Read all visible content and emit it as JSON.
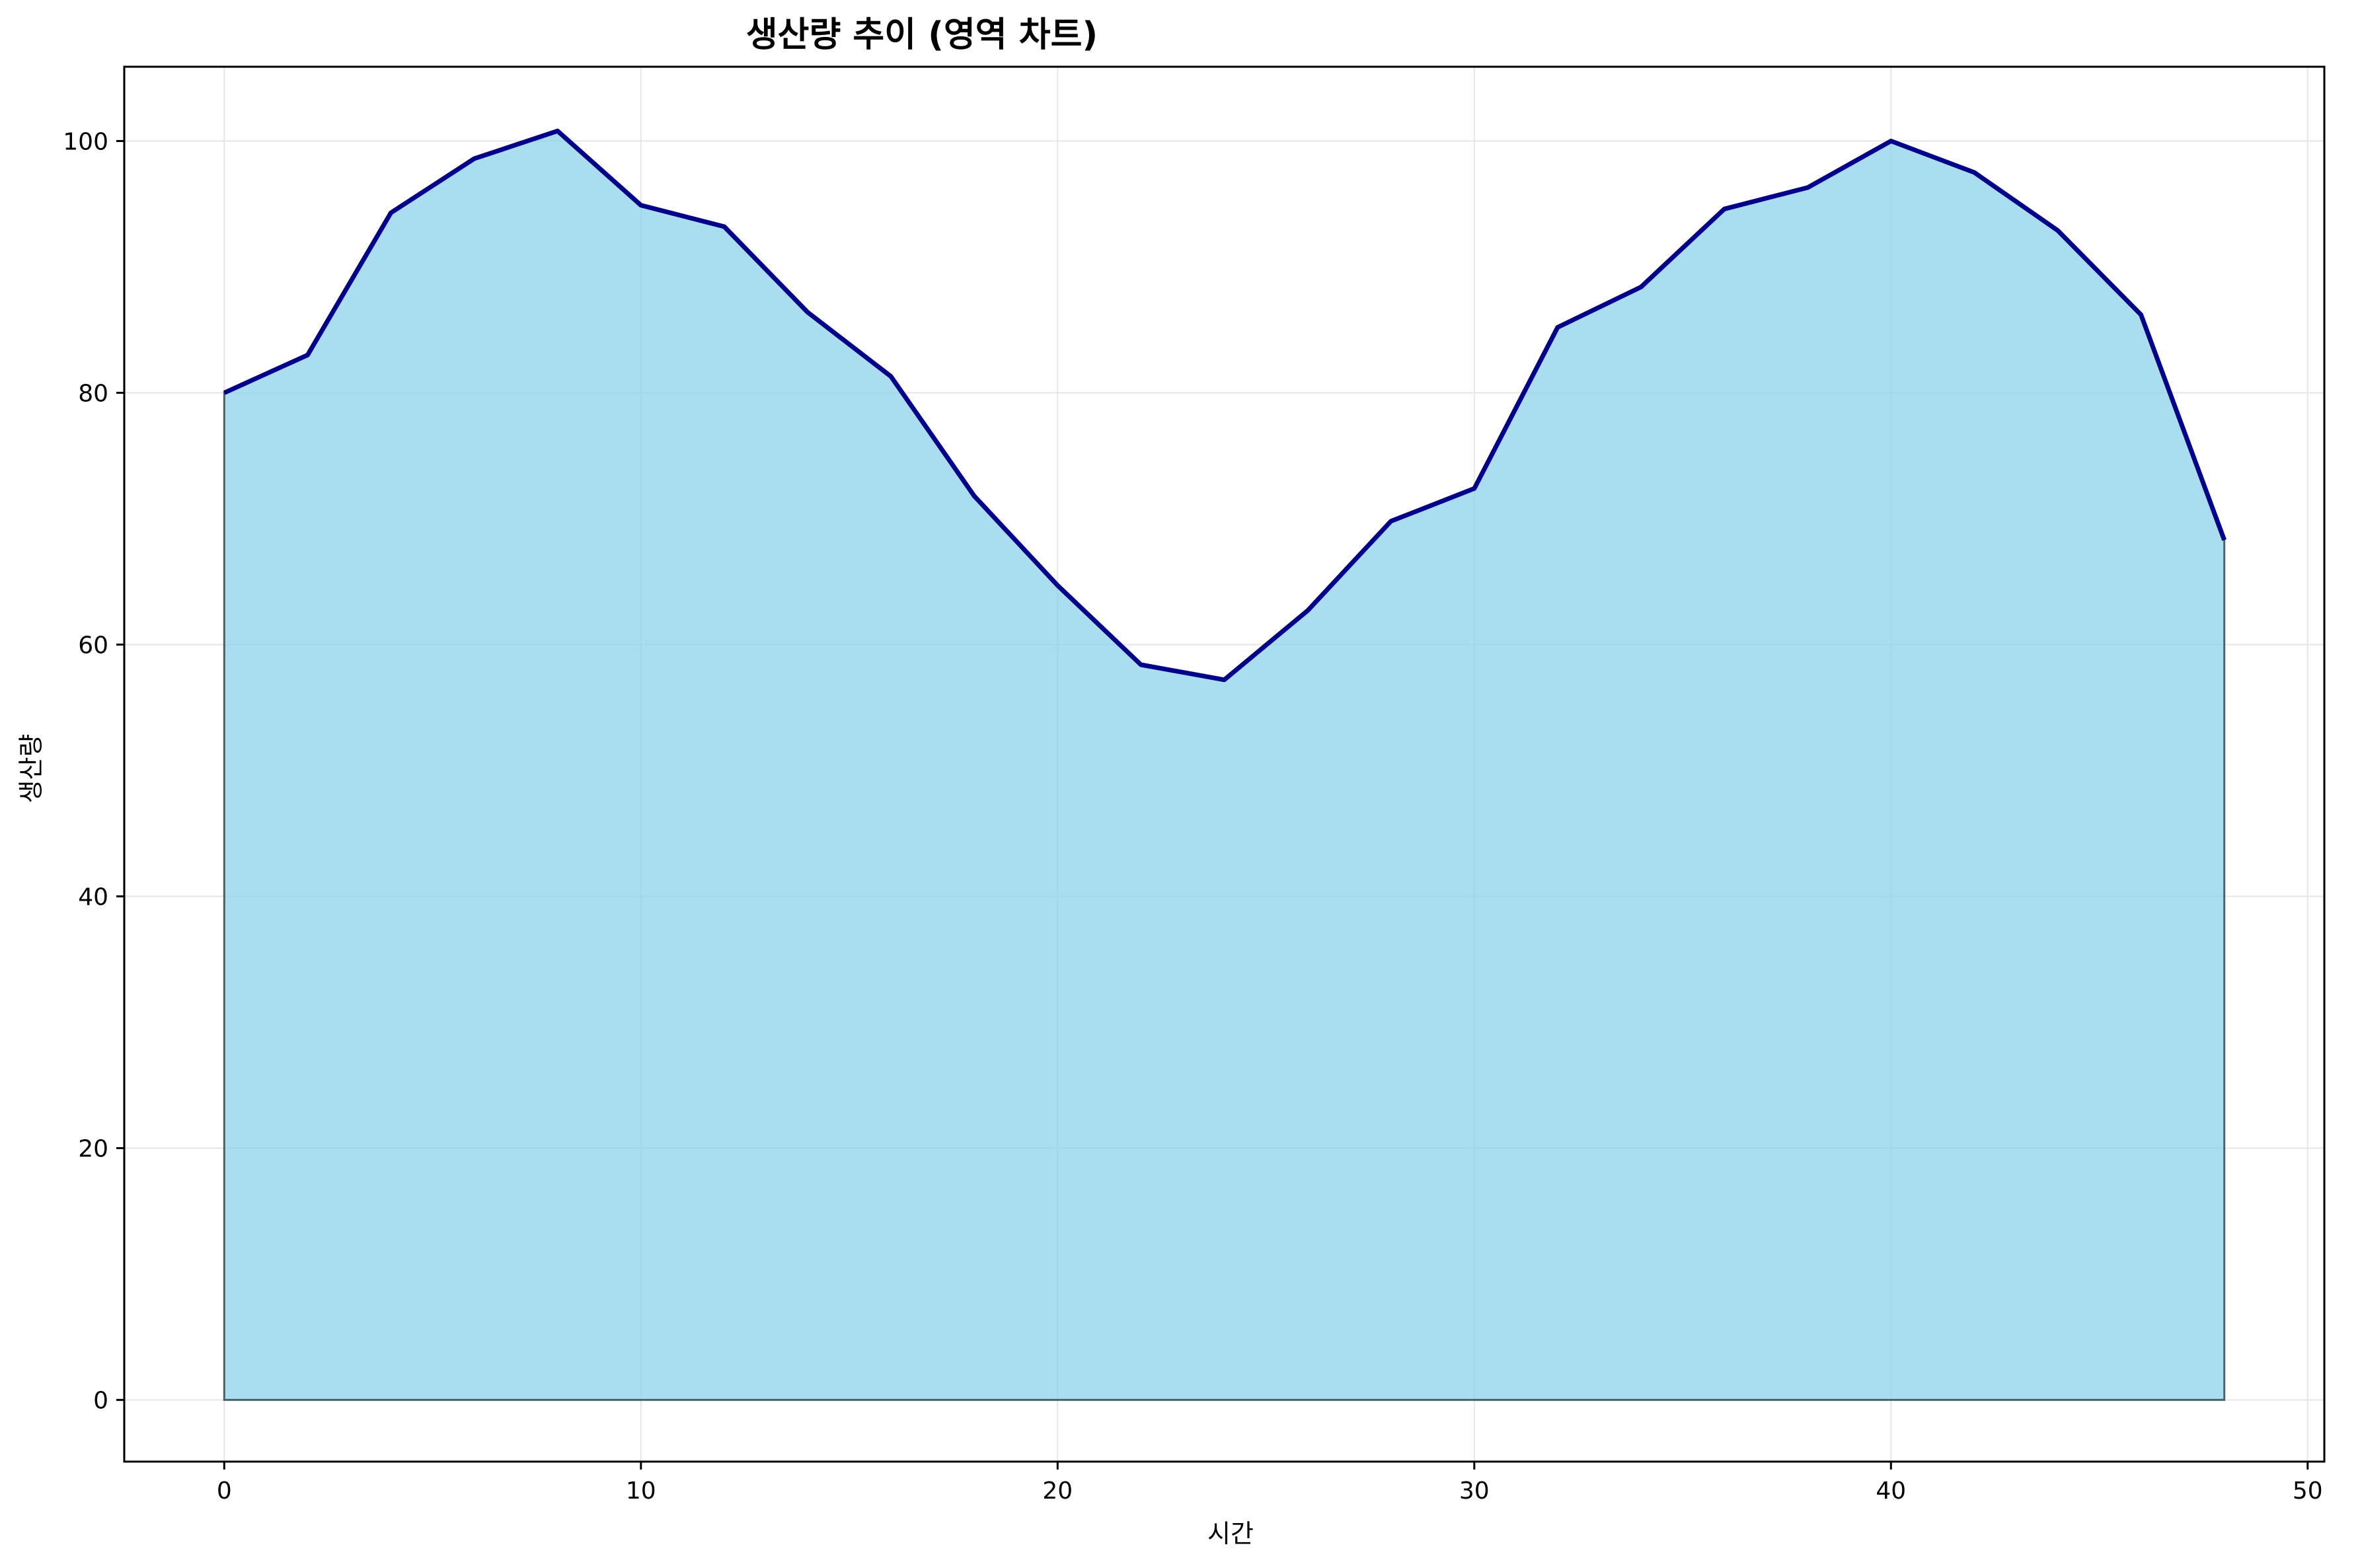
{
  "chart_data": {
    "type": "area",
    "title": "생산량 추이 (영역 차트)",
    "xlabel": "시간",
    "ylabel": "생산량",
    "xlim": [
      -2.4,
      50.4
    ],
    "ylim": [
      -4.9,
      105.9
    ],
    "xticks": [
      0,
      10,
      20,
      30,
      40,
      50
    ],
    "yticks": [
      0,
      20,
      40,
      60,
      80,
      100
    ],
    "xtick_labels": [
      "0",
      "10",
      "20",
      "30",
      "40",
      "50"
    ],
    "ytick_labels": [
      "0",
      "20",
      "40",
      "60",
      "80",
      "100"
    ],
    "grid": true,
    "legend": "none",
    "colors": {
      "fill": "#87ceeb",
      "line": "#00008b",
      "grid": "#e6e6e6"
    },
    "x": [
      0,
      2,
      4,
      6,
      8,
      10,
      12,
      14,
      16,
      18,
      20,
      22,
      24,
      26,
      28,
      30,
      32,
      34,
      36,
      38,
      40,
      42,
      44,
      46,
      48
    ],
    "series": [
      {
        "values": [
          80.0,
          83.0,
          94.3,
          98.6,
          100.8,
          94.9,
          93.2,
          86.4,
          81.3,
          71.8,
          64.7,
          58.4,
          57.2,
          62.7,
          69.8,
          72.4,
          85.2,
          88.4,
          94.6,
          96.3,
          100.0,
          97.5,
          92.9,
          86.2,
          68.3
        ]
      }
    ]
  }
}
